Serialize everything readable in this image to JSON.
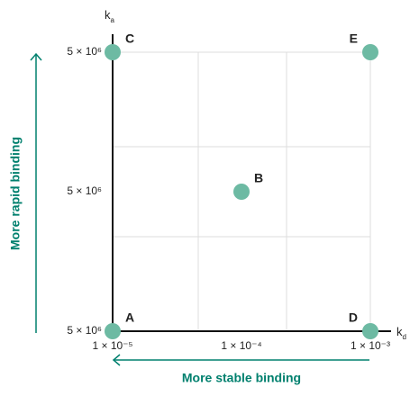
{
  "chart_data": {
    "type": "scatter",
    "x_label": {
      "symbol": "k",
      "subscript": "d"
    },
    "y_label": {
      "symbol": "k",
      "subscript": "a"
    },
    "x_log": true,
    "xlim": [
      1e-05,
      0.001
    ],
    "xticks": [
      {
        "value": 1e-05,
        "label": "1 × 10⁻⁵"
      },
      {
        "value": 0.0001,
        "label": "1 × 10⁻⁴"
      },
      {
        "value": 0.001,
        "label": "1 × 10⁻³"
      }
    ],
    "ylim": [
      0,
      2
    ],
    "yticks": [
      {
        "value": 0,
        "label": "5 × 10⁶"
      },
      {
        "value": 1,
        "label": "5 × 10⁶"
      },
      {
        "value": 2,
        "label": "5 × 10⁶"
      }
    ],
    "color": "#6dbaa3",
    "points": [
      {
        "label": "A",
        "x": 1e-05,
        "y": 0
      },
      {
        "label": "B",
        "x": 0.0001,
        "y": 1
      },
      {
        "label": "C",
        "x": 1e-05,
        "y": 2
      },
      {
        "label": "D",
        "x": 0.001,
        "y": 0
      },
      {
        "label": "E",
        "x": 0.001,
        "y": 2
      }
    ],
    "y_direction_label": "More rapid binding",
    "x_direction_label": "More stable binding"
  }
}
